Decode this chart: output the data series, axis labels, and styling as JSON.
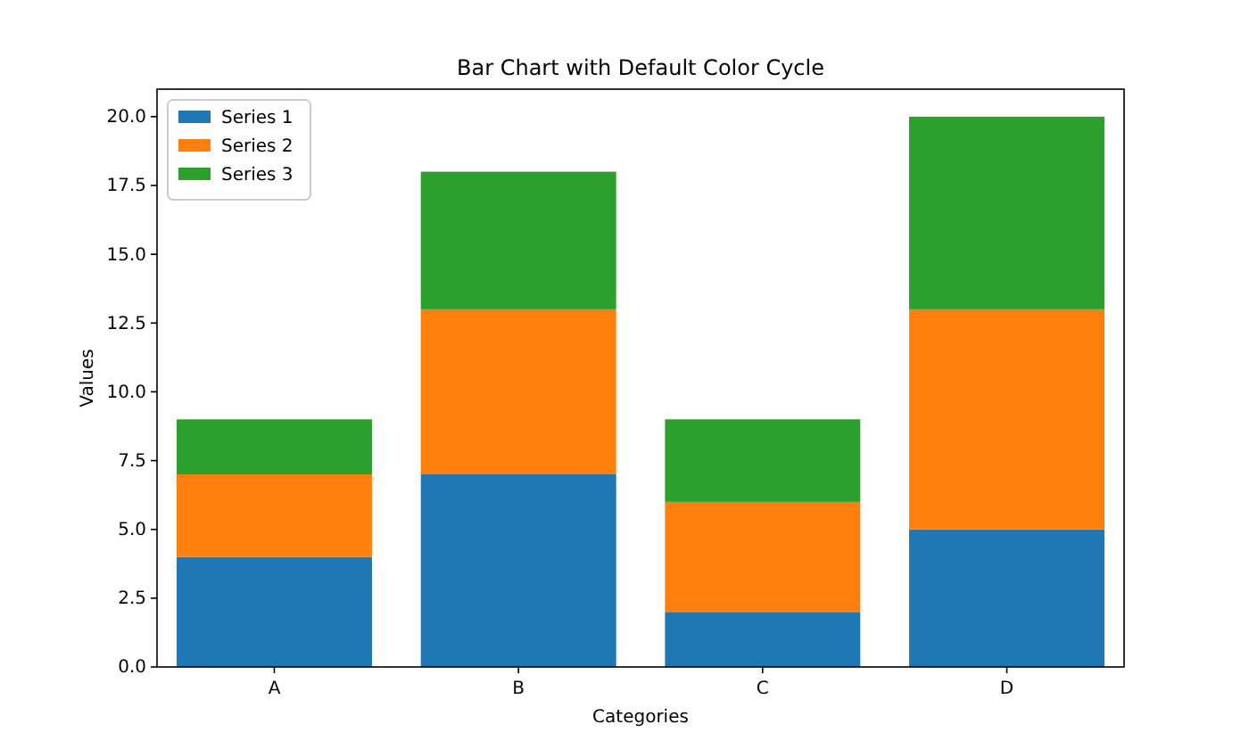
{
  "chart_data": {
    "type": "bar",
    "title": "Bar Chart with Default Color Cycle",
    "xlabel": "Categories",
    "ylabel": "Values",
    "categories": [
      "A",
      "B",
      "C",
      "D"
    ],
    "series": [
      {
        "name": "Series 1",
        "color": "#1f77b4",
        "values": [
          4,
          7,
          2,
          5
        ]
      },
      {
        "name": "Series 2",
        "color": "#ff7f0e",
        "values": [
          3,
          6,
          4,
          8
        ]
      },
      {
        "name": "Series 3",
        "color": "#2ca02c",
        "values": [
          2,
          5,
          3,
          7
        ]
      }
    ],
    "stacked": true,
    "ylim": [
      0,
      21
    ],
    "yticks": [
      {
        "value": 0,
        "label": "0.0"
      },
      {
        "value": 2.5,
        "label": "2.5"
      },
      {
        "value": 5,
        "label": "5.0"
      },
      {
        "value": 7.5,
        "label": "7.5"
      },
      {
        "value": 10,
        "label": "10.0"
      },
      {
        "value": 12.5,
        "label": "12.5"
      },
      {
        "value": 15,
        "label": "15.0"
      },
      {
        "value": 17.5,
        "label": "17.5"
      },
      {
        "value": 20,
        "label": "20.0"
      }
    ],
    "legend": "top left",
    "grid": false
  }
}
